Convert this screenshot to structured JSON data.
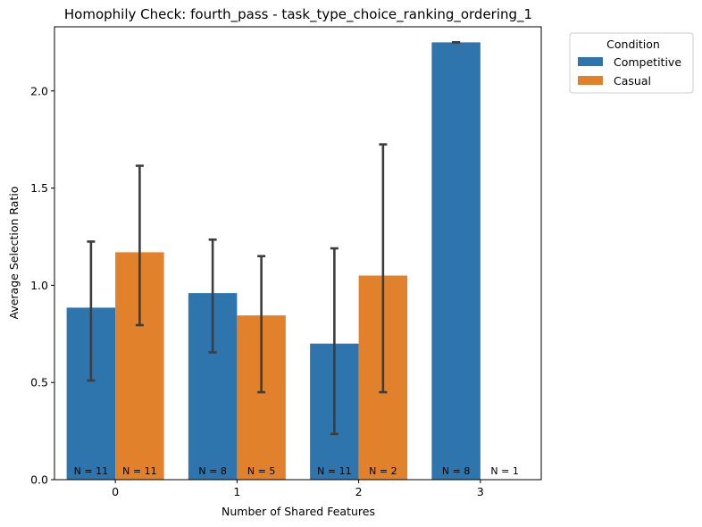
{
  "chart_data": {
    "type": "bar",
    "title": "Homophily Check: fourth_pass - task_type_choice_ranking_ordering_1",
    "xlabel": "Number of Shared Features",
    "ylabel": "Average Selection Ratio",
    "categories": [
      "0",
      "1",
      "2",
      "3"
    ],
    "yticks": [
      "0.0",
      "0.5",
      "1.0",
      "1.5",
      "2.0"
    ],
    "ylim": [
      0,
      2.33
    ],
    "grid": false,
    "legend": {
      "title": "Condition",
      "placement": "outside-top-right"
    },
    "series": [
      {
        "name": "Competitive",
        "color": "#2e75ad",
        "values": [
          0.885,
          0.96,
          0.7,
          2.25
        ],
        "error_low": [
          0.51,
          0.655,
          0.235,
          2.25
        ],
        "error_high": [
          1.225,
          1.235,
          1.19,
          2.25
        ],
        "n_labels": [
          "N = 11",
          "N = 8",
          "N = 11",
          "N = 8"
        ]
      },
      {
        "name": "Casual",
        "color": "#e1812c",
        "values": [
          1.17,
          0.845,
          1.05,
          null
        ],
        "error_low": [
          0.795,
          0.45,
          0.45,
          null
        ],
        "error_high": [
          1.615,
          1.15,
          1.725,
          null
        ],
        "n_labels": [
          "N = 11",
          "N = 5",
          "N = 2",
          "N = 1"
        ]
      }
    ]
  }
}
